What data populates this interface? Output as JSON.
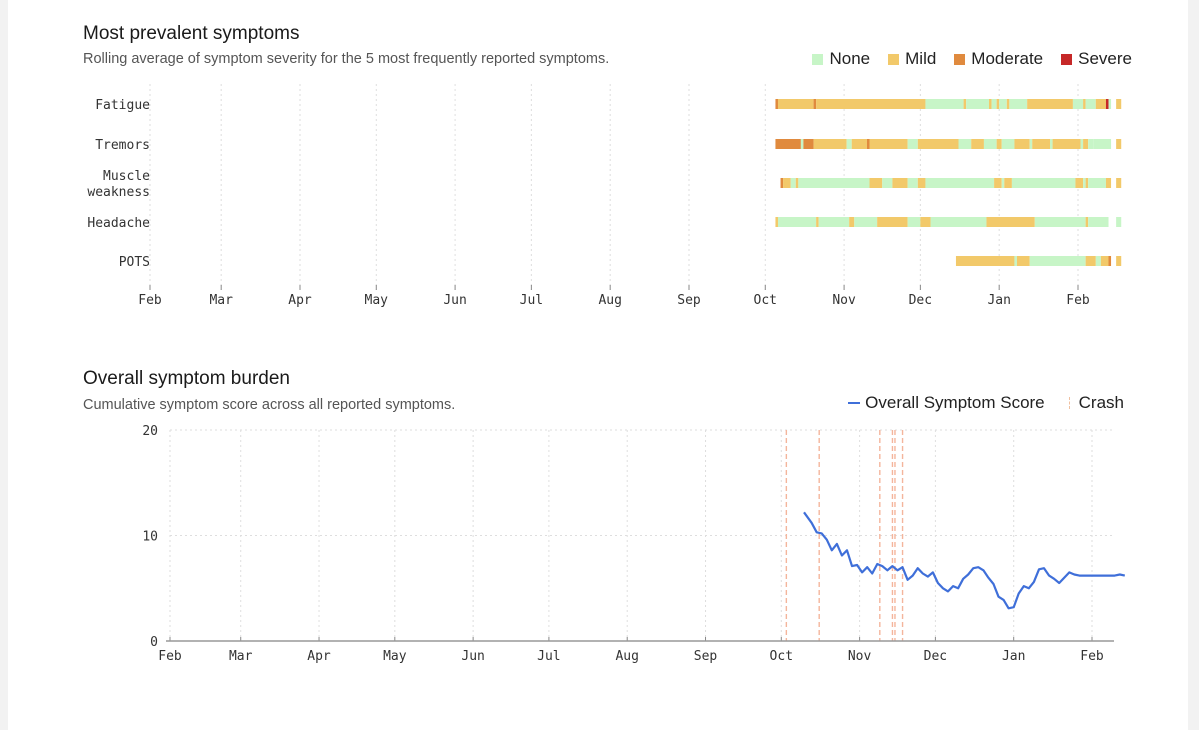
{
  "colors": {
    "None": "#c7f5c7",
    "Mild": "#f2c96a",
    "Moderate": "#e08a3e",
    "Severe": "#c62828",
    "line": "#3f6fd9",
    "crash": "#f4b59c"
  },
  "months": [
    "Feb",
    "Mar",
    "Apr",
    "May",
    "Jun",
    "Jul",
    "Aug",
    "Sep",
    "Oct",
    "Nov",
    "Dec",
    "Jan",
    "Feb"
  ],
  "symptoms_chart": {
    "title": "Most prevalent symptoms",
    "subtitle": "Rolling average of symptom severity for the 5 most frequently reported symptoms.",
    "legend": [
      "None",
      "Mild",
      "Moderate",
      "Severe"
    ]
  },
  "burden_chart": {
    "title": "Overall symptom burden",
    "subtitle": "Cumulative symptom score across all reported symptoms.",
    "legend_score": "Overall Symptom Score",
    "legend_crash": "Crash"
  },
  "chart_data": [
    {
      "type": "heatmap",
      "title": "Most prevalent symptoms",
      "xlabel": "",
      "ylabel": "",
      "x_axis": "month (day offset from Feb 1)",
      "legend": [
        "None",
        "Mild",
        "Moderate",
        "Severe"
      ],
      "rows": [
        {
          "label": "Fatigue",
          "label_lines": [
            "Fatigue"
          ],
          "segments": [
            {
              "start": 246,
              "end": 247,
              "level": "Moderate"
            },
            {
              "start": 247,
              "end": 261,
              "level": "Mild"
            },
            {
              "start": 261,
              "end": 262,
              "level": "Moderate"
            },
            {
              "start": 262,
              "end": 305,
              "level": "Mild"
            },
            {
              "start": 305,
              "end": 320,
              "level": "None"
            },
            {
              "start": 320,
              "end": 321,
              "level": "Mild"
            },
            {
              "start": 321,
              "end": 330,
              "level": "None"
            },
            {
              "start": 330,
              "end": 331,
              "level": "Mild"
            },
            {
              "start": 331,
              "end": 333,
              "level": "None"
            },
            {
              "start": 333,
              "end": 334,
              "level": "Mild"
            },
            {
              "start": 334,
              "end": 337,
              "level": "None"
            },
            {
              "start": 337,
              "end": 338,
              "level": "Mild"
            },
            {
              "start": 338,
              "end": 345,
              "level": "None"
            },
            {
              "start": 345,
              "end": 363,
              "level": "Mild"
            },
            {
              "start": 363,
              "end": 367,
              "level": "None"
            },
            {
              "start": 367,
              "end": 368,
              "level": "Mild"
            },
            {
              "start": 368,
              "end": 372,
              "level": "None"
            },
            {
              "start": 372,
              "end": 376,
              "level": "Mild"
            },
            {
              "start": 376,
              "end": 377,
              "level": "Severe"
            },
            {
              "start": 377,
              "end": 378,
              "level": "None"
            },
            {
              "start": 380,
              "end": 382,
              "level": "Mild"
            }
          ]
        },
        {
          "label": "Tremors",
          "label_lines": [
            "Tremors"
          ],
          "segments": [
            {
              "start": 246,
              "end": 256,
              "level": "Moderate"
            },
            {
              "start": 256,
              "end": 257,
              "level": "None"
            },
            {
              "start": 257,
              "end": 261,
              "level": "Moderate"
            },
            {
              "start": 261,
              "end": 274,
              "level": "Mild"
            },
            {
              "start": 274,
              "end": 276,
              "level": "None"
            },
            {
              "start": 276,
              "end": 282,
              "level": "Mild"
            },
            {
              "start": 282,
              "end": 283,
              "level": "Moderate"
            },
            {
              "start": 283,
              "end": 298,
              "level": "Mild"
            },
            {
              "start": 298,
              "end": 302,
              "level": "None"
            },
            {
              "start": 302,
              "end": 318,
              "level": "Mild"
            },
            {
              "start": 318,
              "end": 323,
              "level": "None"
            },
            {
              "start": 323,
              "end": 328,
              "level": "Mild"
            },
            {
              "start": 328,
              "end": 333,
              "level": "None"
            },
            {
              "start": 333,
              "end": 335,
              "level": "Mild"
            },
            {
              "start": 335,
              "end": 340,
              "level": "None"
            },
            {
              "start": 340,
              "end": 346,
              "level": "Mild"
            },
            {
              "start": 346,
              "end": 347,
              "level": "None"
            },
            {
              "start": 347,
              "end": 354,
              "level": "Mild"
            },
            {
              "start": 354,
              "end": 355,
              "level": "None"
            },
            {
              "start": 355,
              "end": 366,
              "level": "Mild"
            },
            {
              "start": 366,
              "end": 367,
              "level": "None"
            },
            {
              "start": 367,
              "end": 369,
              "level": "Mild"
            },
            {
              "start": 369,
              "end": 371,
              "level": "None"
            },
            {
              "start": 371,
              "end": 378,
              "level": "None"
            },
            {
              "start": 380,
              "end": 382,
              "level": "Mild"
            }
          ]
        },
        {
          "label": "Muscle weakness",
          "label_lines": [
            "Muscle",
            "weakness"
          ],
          "segments": [
            {
              "start": 248,
              "end": 249,
              "level": "Moderate"
            },
            {
              "start": 249,
              "end": 252,
              "level": "Mild"
            },
            {
              "start": 252,
              "end": 254,
              "level": "None"
            },
            {
              "start": 254,
              "end": 255,
              "level": "Mild"
            },
            {
              "start": 255,
              "end": 283,
              "level": "None"
            },
            {
              "start": 283,
              "end": 288,
              "level": "Mild"
            },
            {
              "start": 288,
              "end": 292,
              "level": "None"
            },
            {
              "start": 292,
              "end": 298,
              "level": "Mild"
            },
            {
              "start": 298,
              "end": 302,
              "level": "None"
            },
            {
              "start": 302,
              "end": 305,
              "level": "Mild"
            },
            {
              "start": 305,
              "end": 332,
              "level": "None"
            },
            {
              "start": 332,
              "end": 335,
              "level": "Mild"
            },
            {
              "start": 335,
              "end": 336,
              "level": "None"
            },
            {
              "start": 336,
              "end": 339,
              "level": "Mild"
            },
            {
              "start": 339,
              "end": 364,
              "level": "None"
            },
            {
              "start": 364,
              "end": 367,
              "level": "Mild"
            },
            {
              "start": 367,
              "end": 368,
              "level": "None"
            },
            {
              "start": 368,
              "end": 369,
              "level": "Mild"
            },
            {
              "start": 369,
              "end": 376,
              "level": "None"
            },
            {
              "start": 376,
              "end": 378,
              "level": "Mild"
            },
            {
              "start": 380,
              "end": 382,
              "level": "Mild"
            }
          ]
        },
        {
          "label": "Headache",
          "label_lines": [
            "Headache"
          ],
          "segments": [
            {
              "start": 246,
              "end": 247,
              "level": "Mild"
            },
            {
              "start": 247,
              "end": 262,
              "level": "None"
            },
            {
              "start": 262,
              "end": 263,
              "level": "Mild"
            },
            {
              "start": 263,
              "end": 275,
              "level": "None"
            },
            {
              "start": 275,
              "end": 277,
              "level": "Mild"
            },
            {
              "start": 277,
              "end": 286,
              "level": "None"
            },
            {
              "start": 286,
              "end": 298,
              "level": "Mild"
            },
            {
              "start": 298,
              "end": 303,
              "level": "None"
            },
            {
              "start": 303,
              "end": 307,
              "level": "Mild"
            },
            {
              "start": 307,
              "end": 329,
              "level": "None"
            },
            {
              "start": 329,
              "end": 348,
              "level": "Mild"
            },
            {
              "start": 348,
              "end": 368,
              "level": "None"
            },
            {
              "start": 368,
              "end": 369,
              "level": "Mild"
            },
            {
              "start": 369,
              "end": 377,
              "level": "None"
            },
            {
              "start": 380,
              "end": 382,
              "level": "None"
            }
          ]
        },
        {
          "label": "POTS",
          "label_lines": [
            "POTS"
          ],
          "segments": [
            {
              "start": 317,
              "end": 340,
              "level": "Mild"
            },
            {
              "start": 340,
              "end": 341,
              "level": "None"
            },
            {
              "start": 341,
              "end": 346,
              "level": "Mild"
            },
            {
              "start": 346,
              "end": 368,
              "level": "None"
            },
            {
              "start": 368,
              "end": 372,
              "level": "Mild"
            },
            {
              "start": 372,
              "end": 374,
              "level": "None"
            },
            {
              "start": 374,
              "end": 377,
              "level": "Mild"
            },
            {
              "start": 377,
              "end": 378,
              "level": "Moderate"
            },
            {
              "start": 380,
              "end": 382,
              "level": "Mild"
            }
          ]
        }
      ]
    },
    {
      "type": "line",
      "title": "Overall symptom burden",
      "xlabel": "",
      "ylabel": "",
      "ylim": [
        0,
        20
      ],
      "y_ticks": [
        0,
        10,
        20
      ],
      "x_axis": "month (day offset from Feb 1)",
      "legend": [
        "Overall Symptom Score",
        "Crash"
      ],
      "series": [
        {
          "name": "Overall Symptom Score",
          "x": [
            251,
            254,
            256,
            258,
            260,
            262,
            264,
            266,
            268,
            270,
            272,
            274,
            276,
            278,
            280,
            282,
            284,
            286,
            288,
            290,
            292,
            294,
            296,
            298,
            300,
            302,
            304,
            306,
            308,
            310,
            312,
            314,
            316,
            318,
            320,
            322,
            324,
            326,
            328,
            330,
            332,
            334,
            336,
            338,
            340,
            342,
            344,
            346,
            348,
            350,
            352,
            354,
            356,
            358,
            360,
            362,
            364,
            366,
            368,
            370,
            372,
            374,
            376,
            378
          ],
          "values": [
            12.2,
            11.2,
            10.3,
            10.2,
            9.6,
            8.6,
            9.2,
            8.1,
            8.6,
            7.1,
            7.2,
            6.5,
            7.0,
            6.4,
            7.3,
            7.1,
            6.7,
            7.1,
            6.7,
            7.0,
            5.8,
            6.2,
            6.9,
            6.4,
            6.1,
            6.5,
            5.5,
            5.0,
            4.7,
            5.2,
            5.0,
            5.9,
            6.3,
            6.9,
            7.0,
            6.7,
            6.0,
            5.4,
            4.2,
            3.9,
            3.1,
            3.2,
            4.5,
            5.2,
            5.0,
            5.6,
            6.8,
            6.9,
            6.2,
            5.9,
            5.5,
            6.0,
            6.5,
            6.3,
            6.2,
            6.2,
            6.2,
            6.2,
            6.2,
            6.2,
            6.2,
            6.2,
            6.3,
            6.2
          ]
        }
      ],
      "crash_days": [
        244,
        257,
        281,
        286,
        287,
        290
      ]
    }
  ]
}
